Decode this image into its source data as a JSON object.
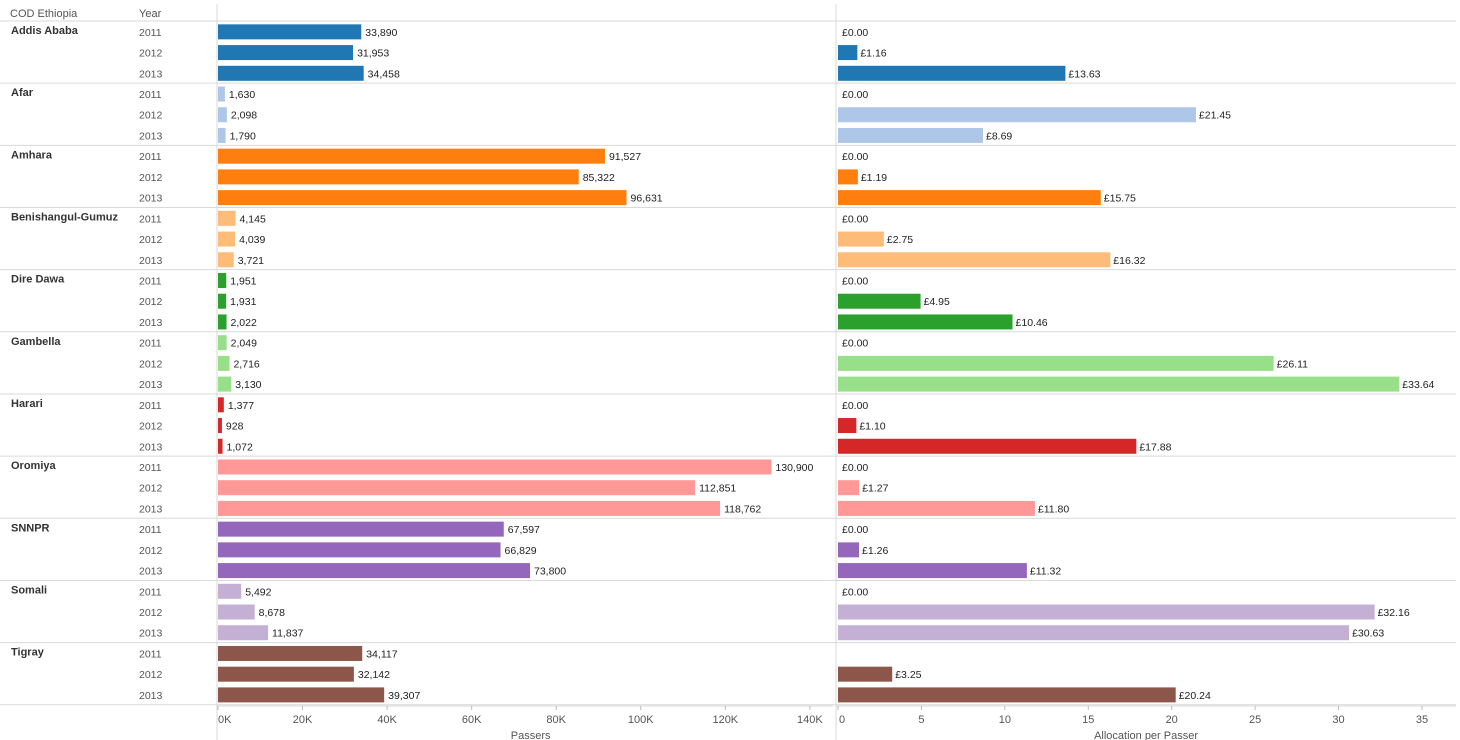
{
  "header": {
    "col1": "COD Ethiopia",
    "col2": "Year"
  },
  "chart_data": [
    {
      "type": "bar",
      "orientation": "horizontal",
      "xlabel": "Passers",
      "xlim": [
        0,
        145000
      ],
      "ticks": [
        0,
        20000,
        40000,
        60000,
        80000,
        100000,
        120000,
        140000
      ],
      "tick_labels": [
        "0K",
        "20K",
        "40K",
        "60K",
        "80K",
        "100K",
        "120K",
        "140K"
      ],
      "grid": false
    },
    {
      "type": "bar",
      "orientation": "horizontal",
      "xlabel": "Allocation per Passer",
      "xlim": [
        0,
        36.2
      ],
      "ticks": [
        0,
        5,
        10,
        15,
        20,
        25,
        30,
        35
      ],
      "tick_labels": [
        "0",
        "5",
        "10",
        "15",
        "20",
        "25",
        "30",
        "35"
      ],
      "grid": false
    }
  ],
  "regions": [
    {
      "name": "Addis Ababa",
      "color": "#1f77b4",
      "years": [
        "2011",
        "2012",
        "2013"
      ],
      "passers": [
        33890,
        31953,
        34458
      ],
      "passers_labels": [
        "33,890",
        "31,953",
        "34,458"
      ],
      "allocation": [
        0,
        1.16,
        13.63
      ],
      "allocation_labels": [
        "£0.00",
        "£1.16",
        "£13.63"
      ]
    },
    {
      "name": "Afar",
      "color": "#aec7e8",
      "years": [
        "2011",
        "2012",
        "2013"
      ],
      "passers": [
        1630,
        2098,
        1790
      ],
      "passers_labels": [
        "1,630",
        "2,098",
        "1,790"
      ],
      "allocation": [
        0,
        21.45,
        8.69
      ],
      "allocation_labels": [
        "£0.00",
        "£21.45",
        "£8.69"
      ]
    },
    {
      "name": "Amhara",
      "color": "#ff7f0e",
      "years": [
        "2011",
        "2012",
        "2013"
      ],
      "passers": [
        91527,
        85322,
        96631
      ],
      "passers_labels": [
        "91,527",
        "85,322",
        "96,631"
      ],
      "allocation": [
        0,
        1.19,
        15.75
      ],
      "allocation_labels": [
        "£0.00",
        "£1.19",
        "£15.75"
      ]
    },
    {
      "name": "Benishangul-Gumuz",
      "color": "#ffbb78",
      "years": [
        "2011",
        "2012",
        "2013"
      ],
      "passers": [
        4145,
        4039,
        3721
      ],
      "passers_labels": [
        "4,145",
        "4,039",
        "3,721"
      ],
      "allocation": [
        0,
        2.75,
        16.32
      ],
      "allocation_labels": [
        "£0.00",
        "£2.75",
        "£16.32"
      ]
    },
    {
      "name": "Dire Dawa",
      "color": "#2ca02c",
      "years": [
        "2011",
        "2012",
        "2013"
      ],
      "passers": [
        1951,
        1931,
        2022
      ],
      "passers_labels": [
        "1,951",
        "1,931",
        "2,022"
      ],
      "allocation": [
        0,
        4.95,
        10.46
      ],
      "allocation_labels": [
        "£0.00",
        "£4.95",
        "£10.46"
      ]
    },
    {
      "name": "Gambella",
      "color": "#98df8a",
      "years": [
        "2011",
        "2012",
        "2013"
      ],
      "passers": [
        2049,
        2716,
        3130
      ],
      "passers_labels": [
        "2,049",
        "2,716",
        "3,130"
      ],
      "allocation": [
        0,
        26.11,
        33.64
      ],
      "allocation_labels": [
        "£0.00",
        "£26.11",
        "£33.64"
      ]
    },
    {
      "name": "Harari",
      "color": "#d62728",
      "years": [
        "2011",
        "2012",
        "2013"
      ],
      "passers": [
        1377,
        928,
        1072
      ],
      "passers_labels": [
        "1,377",
        "928",
        "1,072"
      ],
      "allocation": [
        0,
        1.1,
        17.88
      ],
      "allocation_labels": [
        "£0.00",
        "£1.10",
        "£17.88"
      ]
    },
    {
      "name": "Oromiya",
      "color": "#ff9896",
      "years": [
        "2011",
        "2012",
        "2013"
      ],
      "passers": [
        130900,
        112851,
        118762
      ],
      "passers_labels": [
        "130,900",
        "112,851",
        "118,762"
      ],
      "allocation": [
        0,
        1.27,
        11.8
      ],
      "allocation_labels": [
        "£0.00",
        "£1.27",
        "£11.80"
      ]
    },
    {
      "name": "SNNPR",
      "color": "#9467bd",
      "years": [
        "2011",
        "2012",
        "2013"
      ],
      "passers": [
        67597,
        66829,
        73800
      ],
      "passers_labels": [
        "67,597",
        "66,829",
        "73,800"
      ],
      "allocation": [
        0,
        1.26,
        11.32
      ],
      "allocation_labels": [
        "£0.00",
        "£1.26",
        "£11.32"
      ]
    },
    {
      "name": "Somali",
      "color": "#c5b0d5",
      "years": [
        "2011",
        "2012",
        "2013"
      ],
      "passers": [
        5492,
        8678,
        11837
      ],
      "passers_labels": [
        "5,492",
        "8,678",
        "11,837"
      ],
      "allocation": [
        0,
        32.16,
        30.63
      ],
      "allocation_labels": [
        "£0.00",
        "£32.16",
        "£30.63"
      ]
    },
    {
      "name": "Tigray",
      "color": "#8c564b",
      "years": [
        "2011",
        "2012",
        "2013"
      ],
      "passers": [
        34117,
        32142,
        39307
      ],
      "passers_labels": [
        "34,117",
        "32,142",
        "39,307"
      ],
      "allocation": [
        null,
        3.25,
        20.24
      ],
      "allocation_labels": [
        "",
        "£3.25",
        "£20.24"
      ]
    }
  ]
}
